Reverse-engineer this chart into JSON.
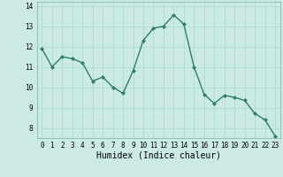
{
  "x": [
    0,
    1,
    2,
    3,
    4,
    5,
    6,
    7,
    8,
    9,
    10,
    11,
    12,
    13,
    14,
    15,
    16,
    17,
    18,
    19,
    20,
    21,
    22,
    23
  ],
  "y": [
    11.9,
    11.0,
    11.5,
    11.4,
    11.2,
    10.3,
    10.5,
    10.0,
    9.7,
    10.8,
    12.3,
    12.9,
    13.0,
    13.55,
    13.1,
    11.0,
    9.65,
    9.2,
    9.6,
    9.5,
    9.35,
    8.7,
    8.4,
    7.6
  ],
  "line_color": "#2d7d6e",
  "marker": "D",
  "marker_size": 2.0,
  "line_width": 1.0,
  "xlabel": "Humidex (Indice chaleur)",
  "xlabel_fontsize": 7,
  "ylim": [
    7.5,
    14.2
  ],
  "xlim": [
    -0.5,
    23.5
  ],
  "yticks": [
    8,
    9,
    10,
    11,
    12,
    13,
    14
  ],
  "xticks": [
    0,
    1,
    2,
    3,
    4,
    5,
    6,
    7,
    8,
    9,
    10,
    11,
    12,
    13,
    14,
    15,
    16,
    17,
    18,
    19,
    20,
    21,
    22,
    23
  ],
  "grid_color": "#a8d8d0",
  "bg_color": "#cceae4",
  "tick_fontsize": 5.5
}
